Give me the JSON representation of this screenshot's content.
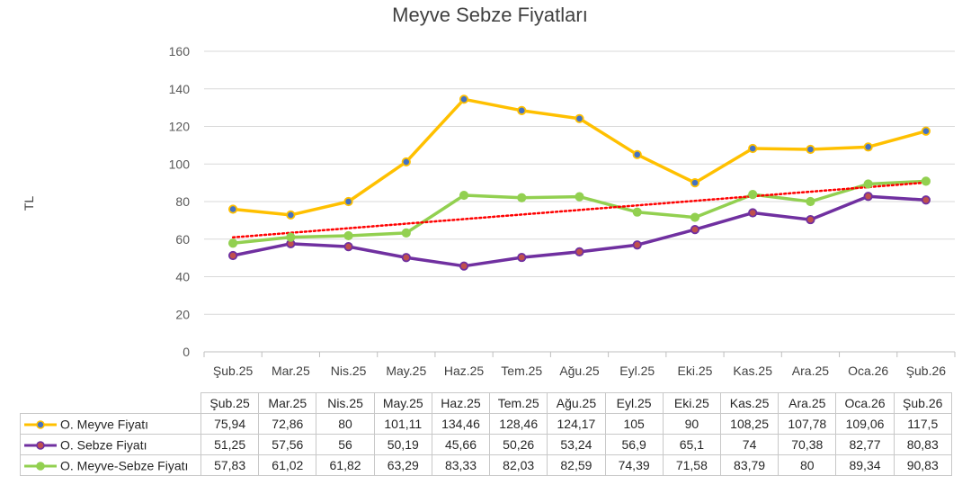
{
  "chart_data": {
    "type": "line",
    "title": "Meyve Sebze Fiyatları",
    "xlabel": "",
    "ylabel": "TL",
    "ylim": [
      0,
      160
    ],
    "yticks": [
      0,
      20,
      40,
      60,
      80,
      100,
      120,
      140,
      160
    ],
    "grid": true,
    "categories": [
      "Şub.25",
      "Mar.25",
      "Nis.25",
      "May.25",
      "Haz.25",
      "Tem.25",
      "Ağu.25",
      "Eyl.25",
      "Eki.25",
      "Kas.25",
      "Ara.25",
      "Oca.26",
      "Şub.26"
    ],
    "series": [
      {
        "name": "O. Meyve Fiyatı",
        "color": "#ffc000",
        "markerColor": "#4472c4",
        "values": [
          75.94,
          72.86,
          80,
          101.11,
          134.46,
          128.46,
          124.17,
          105,
          90,
          108.25,
          107.78,
          109.06,
          117.5
        ],
        "labels": [
          "75,94",
          "72,86",
          "80",
          "101,11",
          "134,46",
          "128,46",
          "124,17",
          "105",
          "90",
          "108,25",
          "107,78",
          "109,06",
          "117,5"
        ]
      },
      {
        "name": "O. Sebze Fiyatı",
        "color": "#7030a0",
        "markerColor": "#c0504d",
        "values": [
          51.25,
          57.56,
          56,
          50.19,
          45.66,
          50.26,
          53.24,
          56.9,
          65.1,
          74,
          70.38,
          82.77,
          80.83
        ],
        "labels": [
          "51,25",
          "57,56",
          "56",
          "50,19",
          "45,66",
          "50,26",
          "53,24",
          "56,9",
          "65,1",
          "74",
          "70,38",
          "82,77",
          "80,83"
        ]
      },
      {
        "name": "O. Meyve-Sebze Fiyatı",
        "color": "#92d050",
        "markerColor": "#92d050",
        "values": [
          57.83,
          61.02,
          61.82,
          63.29,
          83.33,
          82.03,
          82.59,
          74.39,
          71.58,
          83.79,
          80,
          89.34,
          90.83
        ],
        "labels": [
          "57,83",
          "61,02",
          "61,82",
          "63,29",
          "83,33",
          "82,03",
          "82,59",
          "74,39",
          "71,58",
          "83,79",
          "80",
          "89,34",
          "90,83"
        ]
      }
    ],
    "trendline": {
      "of": "O. Meyve-Sebze Fiyatı",
      "type": "linear",
      "color": "#ff0000",
      "style": "dotted"
    }
  }
}
